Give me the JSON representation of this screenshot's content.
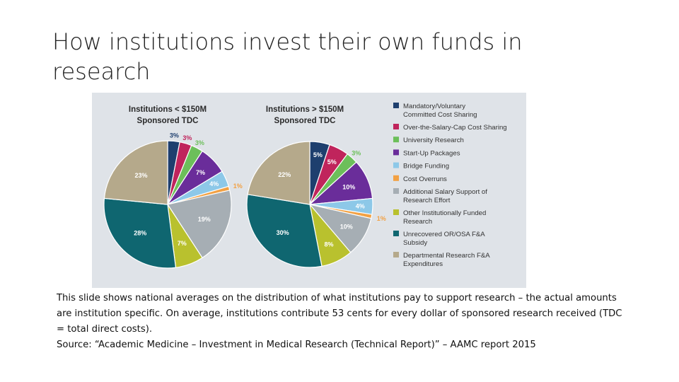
{
  "slide": {
    "title": "How institutions invest their own funds in\nresearch",
    "caption_lines": [
      "This slide shows national averages on the distribution of what institutions pay to support research – the actual amounts are institution specific.  On average,  institutions contribute 53 cents for every dollar of sponsored research received (TDC = total direct costs).",
      "Source: “Academic Medicine – Investment in Medical Research (Technical Report)” – AAMC report 2015"
    ]
  },
  "colors": {
    "panel_background": "#dfe3e8",
    "slice_colors": [
      "#1e3f6e",
      "#c0245c",
      "#6cbf5a",
      "#6a2d9a",
      "#8dc8e8",
      "#f2a144",
      "#a6aeb4",
      "#b9c12e",
      "#0f6670",
      "#b5a98b"
    ],
    "label_light": "#ffffff",
    "label_dark": "#3a3a3a"
  },
  "chart_data": {
    "type": "pie",
    "categories": [
      "Mandatory/Voluntary Committed Cost Sharing",
      "Over-the-Salary-Cap Cost Sharing",
      "University Research",
      "Start-Up Packages",
      "Bridge Funding",
      "Cost Overruns",
      "Additional Salary Support of Research Effort",
      "Other Institutionally Funded Research",
      "Unrecovered OR/OSA F&A Subsidy",
      "Departmental Research F&A Expenditures"
    ],
    "legend": {
      "placement": "right",
      "entries": [
        [
          "Mandatory/Voluntary",
          "Committed Cost Sharing"
        ],
        [
          "Over-the-Salary-Cap Cost Sharing"
        ],
        [
          "University Research"
        ],
        [
          "Start-Up Packages"
        ],
        [
          "Bridge Funding"
        ],
        [
          "Cost Overruns"
        ],
        [
          "Additional Salary Support of",
          "Research Effort"
        ],
        [
          "Other Institutionally Funded",
          "Research"
        ],
        [
          "Unrecovered OR/OSA F&A",
          "Subsidy"
        ],
        [
          "Departmental Research F&A",
          "Expenditures"
        ]
      ]
    },
    "series": [
      {
        "name": "Institutions < $150M Sponsored TDC",
        "title_lines": [
          "Institutions < $150M",
          "Sponsored TDC"
        ],
        "values": [
          3,
          3,
          3,
          7,
          4,
          1,
          19,
          7,
          28,
          23
        ],
        "labels": [
          "3%",
          "3%",
          "3%",
          "7%",
          "4%",
          "1%",
          "19%",
          "7%",
          "28%",
          "23%"
        ]
      },
      {
        "name": "Institutions > $150M Sponsored TDC",
        "title_lines": [
          "Institutions > $150M",
          "Sponsored TDC"
        ],
        "values": [
          5,
          5,
          3,
          10,
          4,
          1,
          10,
          8,
          30,
          22
        ],
        "labels": [
          "5%",
          "5%",
          "3%",
          "10%",
          "4%",
          "1%",
          "10%",
          "8%",
          "30%",
          "22%"
        ]
      }
    ]
  }
}
